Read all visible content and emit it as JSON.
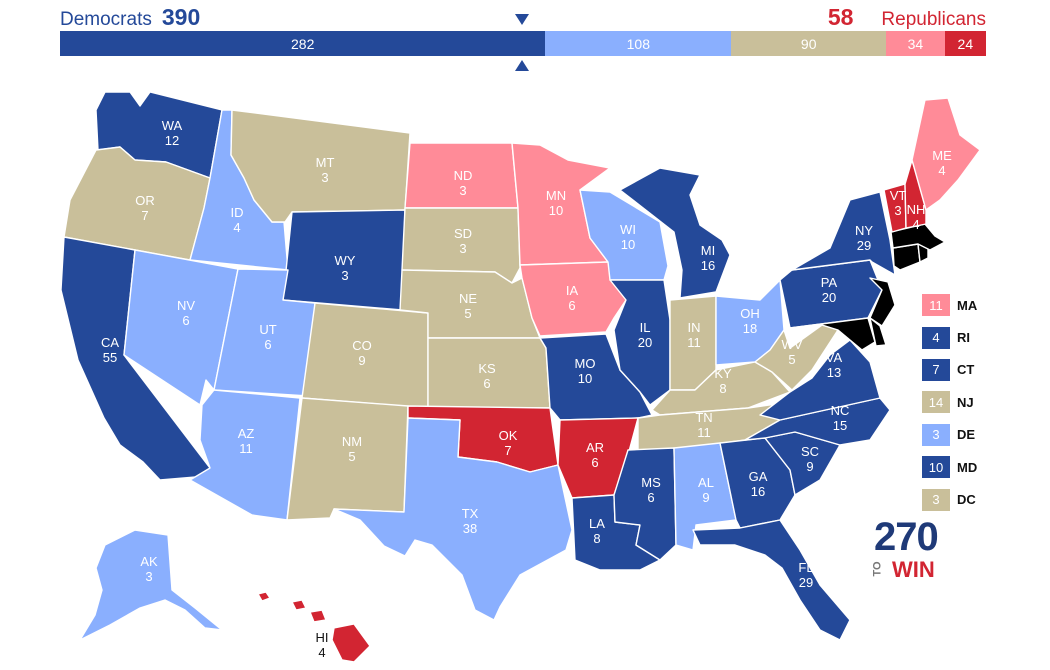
{
  "header": {
    "dem": {
      "name": "Democrats",
      "total": "390"
    },
    "rep": {
      "name": "Republicans",
      "total": "58"
    },
    "segments": [
      {
        "value": 282,
        "label": "282",
        "color": "#244999"
      },
      {
        "value": 108,
        "label": "108",
        "color": "#8aaffe"
      },
      {
        "value": 90,
        "label": "90",
        "color": "#c9bf9a"
      },
      {
        "value": 34,
        "label": "34",
        "color": "#ff8b98"
      },
      {
        "value": 24,
        "label": "24",
        "color": "#d22532"
      }
    ],
    "threshold_marker": "triangle-marker-icon"
  },
  "colors": {
    "safe_dem": "#244999",
    "lean_dem": "#8aaffe",
    "tossup": "#c9bf9a",
    "lean_rep": "#ff8b98",
    "safe_rep": "#d22532"
  },
  "states": [
    {
      "abbr": "WA",
      "votes": "12",
      "rating": "safe_dem"
    },
    {
      "abbr": "OR",
      "votes": "7",
      "rating": "tossup"
    },
    {
      "abbr": "CA",
      "votes": "55",
      "rating": "safe_dem"
    },
    {
      "abbr": "ID",
      "votes": "4",
      "rating": "lean_dem"
    },
    {
      "abbr": "NV",
      "votes": "6",
      "rating": "lean_dem"
    },
    {
      "abbr": "MT",
      "votes": "3",
      "rating": "tossup"
    },
    {
      "abbr": "WY",
      "votes": "3",
      "rating": "safe_dem"
    },
    {
      "abbr": "UT",
      "votes": "6",
      "rating": "lean_dem"
    },
    {
      "abbr": "CO",
      "votes": "9",
      "rating": "tossup"
    },
    {
      "abbr": "AZ",
      "votes": "11",
      "rating": "lean_dem"
    },
    {
      "abbr": "NM",
      "votes": "5",
      "rating": "tossup"
    },
    {
      "abbr": "ND",
      "votes": "3",
      "rating": "lean_rep"
    },
    {
      "abbr": "SD",
      "votes": "3",
      "rating": "tossup"
    },
    {
      "abbr": "NE",
      "votes": "5",
      "rating": "tossup"
    },
    {
      "abbr": "KS",
      "votes": "6",
      "rating": "tossup"
    },
    {
      "abbr": "OK",
      "votes": "7",
      "rating": "safe_rep"
    },
    {
      "abbr": "TX",
      "votes": "38",
      "rating": "lean_dem"
    },
    {
      "abbr": "MN",
      "votes": "10",
      "rating": "lean_rep"
    },
    {
      "abbr": "IA",
      "votes": "6",
      "rating": "lean_rep"
    },
    {
      "abbr": "MO",
      "votes": "10",
      "rating": "safe_dem"
    },
    {
      "abbr": "AR",
      "votes": "6",
      "rating": "safe_rep"
    },
    {
      "abbr": "LA",
      "votes": "8",
      "rating": "safe_dem"
    },
    {
      "abbr": "WI",
      "votes": "10",
      "rating": "lean_dem"
    },
    {
      "abbr": "IL",
      "votes": "20",
      "rating": "safe_dem"
    },
    {
      "abbr": "MI",
      "votes": "16",
      "rating": "safe_dem"
    },
    {
      "abbr": "IN",
      "votes": "11",
      "rating": "tossup"
    },
    {
      "abbr": "OH",
      "votes": "18",
      "rating": "lean_dem"
    },
    {
      "abbr": "KY",
      "votes": "8",
      "rating": "tossup"
    },
    {
      "abbr": "TN",
      "votes": "11",
      "rating": "tossup"
    },
    {
      "abbr": "MS",
      "votes": "6",
      "rating": "safe_dem"
    },
    {
      "abbr": "AL",
      "votes": "9",
      "rating": "lean_dem"
    },
    {
      "abbr": "GA",
      "votes": "16",
      "rating": "safe_dem"
    },
    {
      "abbr": "FL",
      "votes": "29",
      "rating": "safe_dem"
    },
    {
      "abbr": "SC",
      "votes": "9",
      "rating": "safe_dem"
    },
    {
      "abbr": "NC",
      "votes": "15",
      "rating": "safe_dem"
    },
    {
      "abbr": "VA",
      "votes": "13",
      "rating": "safe_dem"
    },
    {
      "abbr": "WV",
      "votes": "5",
      "rating": "tossup"
    },
    {
      "abbr": "PA",
      "votes": "20",
      "rating": "safe_dem"
    },
    {
      "abbr": "NY",
      "votes": "29",
      "rating": "safe_dem"
    },
    {
      "abbr": "VT",
      "votes": "3",
      "rating": "safe_rep"
    },
    {
      "abbr": "NH",
      "votes": "4",
      "rating": "safe_rep"
    },
    {
      "abbr": "ME",
      "votes": "4",
      "rating": "lean_rep"
    },
    {
      "abbr": "AK",
      "votes": "3",
      "rating": "lean_dem"
    },
    {
      "abbr": "HI",
      "votes": "4",
      "rating": "safe_rep"
    }
  ],
  "small_states": [
    {
      "abbr": "MA",
      "votes": "11",
      "rating": "lean_rep"
    },
    {
      "abbr": "RI",
      "votes": "4",
      "rating": "safe_dem"
    },
    {
      "abbr": "CT",
      "votes": "7",
      "rating": "safe_dem"
    },
    {
      "abbr": "NJ",
      "votes": "14",
      "rating": "tossup"
    },
    {
      "abbr": "DE",
      "votes": "3",
      "rating": "lean_dem"
    },
    {
      "abbr": "MD",
      "votes": "10",
      "rating": "safe_dem"
    },
    {
      "abbr": "DC",
      "votes": "3",
      "rating": "tossup"
    }
  ],
  "logo": {
    "number": "270",
    "to": "TO",
    "win": "WIN"
  }
}
